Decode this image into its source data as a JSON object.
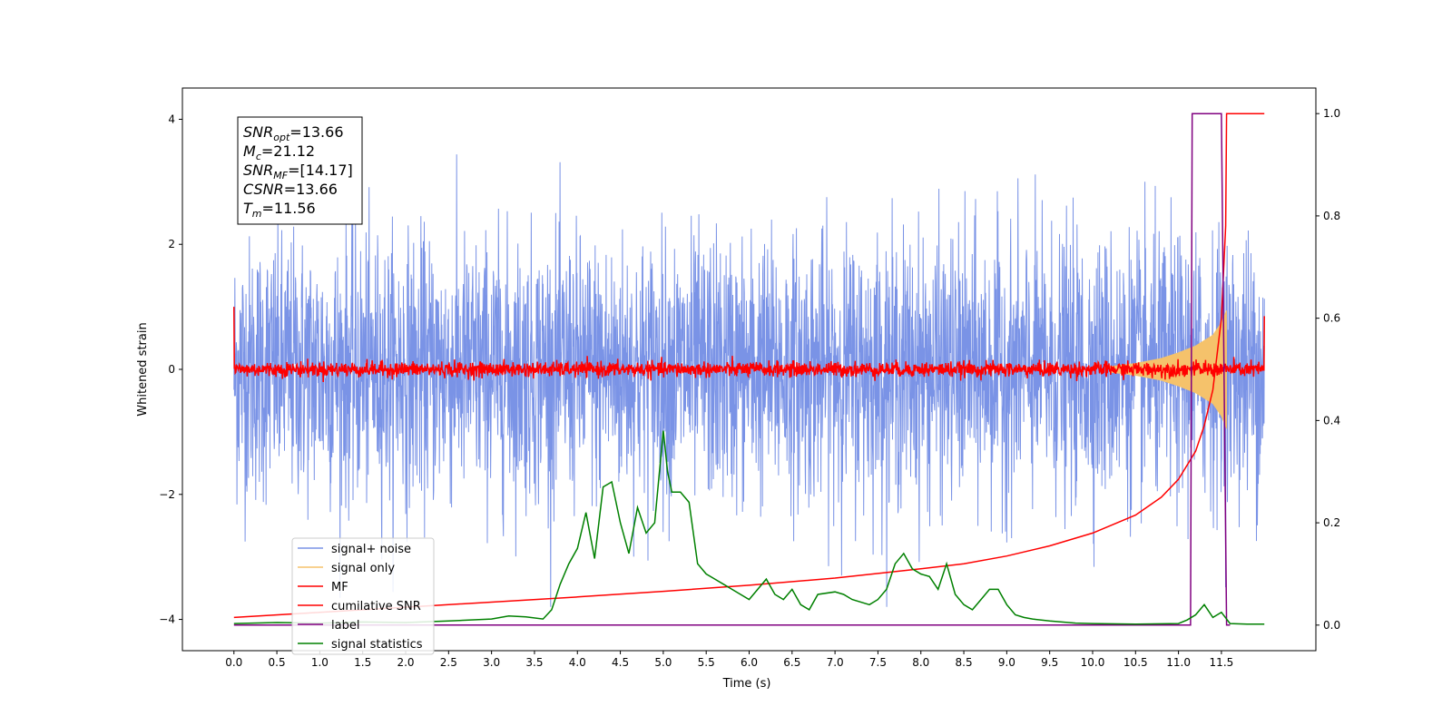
{
  "chart_data": {
    "type": "line",
    "xlabel": "Time (s)",
    "ylabel": "Whitened strain",
    "xlim": [
      -0.6,
      12.6
    ],
    "ylim": [
      -4.5,
      4.5
    ],
    "ylim_right": [
      -0.05,
      1.05
    ],
    "x_ticks": [
      "0.0",
      "0.5",
      "1.0",
      "1.5",
      "2.0",
      "2.5",
      "3.0",
      "3.5",
      "4.0",
      "4.5",
      "5.0",
      "5.5",
      "6.0",
      "6.5",
      "7.0",
      "7.5",
      "8.0",
      "8.5",
      "9.0",
      "9.5",
      "10.0",
      "10.5",
      "11.0",
      "11.5"
    ],
    "y_ticks_left": [
      "4",
      "2",
      "0",
      "−2",
      "−4"
    ],
    "y_ticks_right": [
      "1.0",
      "0.8",
      "0.6",
      "0.4",
      "0.2",
      "0.0"
    ],
    "legend": {
      "placement": "lower-left",
      "entries": [
        {
          "label": "signal+ noise",
          "color": "#7a93e6"
        },
        {
          "label": "signal only",
          "color": "#f5c26b"
        },
        {
          "label": "MF",
          "color": "#ff0000"
        },
        {
          "label": "cumilative SNR",
          "color": "#ff0000"
        },
        {
          "label": "label",
          "color": "#800080"
        },
        {
          "label": "signal statistics",
          "color": "#008000"
        }
      ]
    },
    "annotation": {
      "lines": [
        {
          "sym": "SNR",
          "sub": "opt",
          "val": "=13.66"
        },
        {
          "sym": "M",
          "sub": "c",
          "val": "=21.12"
        },
        {
          "sym": "SNR",
          "sub": "MF",
          "val": "=[14.17]"
        },
        {
          "sym": "CSNR",
          "sub": "",
          "val": "=13.66"
        },
        {
          "sym": "T",
          "sub": "m",
          "val": "=11.56"
        }
      ]
    },
    "series": [
      {
        "name": "signal+ noise",
        "axis": "left",
        "color": "#7a93e6",
        "x_range": [
          0.0,
          12.0
        ],
        "amplitude_typical": 2.3,
        "amplitude_peak": 3.8
      },
      {
        "name": "signal only",
        "axis": "left",
        "color": "#f5c26b",
        "envelope": {
          "x": [
            10.2,
            10.5,
            10.8,
            11.0,
            11.2,
            11.4,
            11.5,
            11.56
          ],
          "amp": [
            0.05,
            0.1,
            0.18,
            0.27,
            0.38,
            0.55,
            0.75,
            0.95
          ]
        }
      },
      {
        "name": "MF",
        "axis": "left",
        "color": "#ff0000",
        "x_range": [
          0.0,
          12.0
        ],
        "amplitude_typical": 0.12,
        "start_value": 1.0,
        "end_value": 0.85
      },
      {
        "name": "cumilative SNR",
        "axis": "right",
        "color": "#ff0000",
        "x": [
          0.0,
          1.0,
          2.0,
          3.0,
          4.0,
          5.0,
          6.0,
          7.0,
          8.0,
          8.5,
          9.0,
          9.5,
          10.0,
          10.5,
          10.8,
          11.0,
          11.2,
          11.3,
          11.4,
          11.5,
          11.55,
          11.56,
          11.6,
          12.0
        ],
        "values": [
          0.015,
          0.025,
          0.035,
          0.045,
          0.055,
          0.066,
          0.078,
          0.092,
          0.11,
          0.12,
          0.135,
          0.155,
          0.18,
          0.215,
          0.25,
          0.285,
          0.34,
          0.39,
          0.46,
          0.6,
          0.78,
          1.0,
          1.0,
          1.0
        ]
      },
      {
        "name": "label",
        "axis": "right",
        "color": "#800080",
        "x": [
          0.0,
          11.14,
          11.16,
          11.5,
          11.56,
          11.6
        ],
        "values": [
          0.0,
          0.0,
          1.0,
          1.0,
          0.0,
          0.0
        ]
      },
      {
        "name": "signal statistics",
        "axis": "right",
        "color": "#008000",
        "x": [
          0.0,
          0.5,
          1.0,
          1.5,
          2.0,
          2.5,
          3.0,
          3.2,
          3.4,
          3.6,
          3.7,
          3.8,
          3.9,
          4.0,
          4.1,
          4.2,
          4.3,
          4.4,
          4.5,
          4.6,
          4.7,
          4.8,
          4.9,
          5.0,
          5.05,
          5.1,
          5.2,
          5.3,
          5.4,
          5.5,
          5.6,
          5.7,
          5.8,
          6.0,
          6.2,
          6.3,
          6.4,
          6.5,
          6.6,
          6.7,
          6.8,
          7.0,
          7.1,
          7.2,
          7.4,
          7.5,
          7.6,
          7.7,
          7.8,
          7.9,
          8.0,
          8.1,
          8.2,
          8.3,
          8.4,
          8.5,
          8.6,
          8.7,
          8.8,
          8.9,
          9.0,
          9.1,
          9.2,
          9.3,
          9.5,
          9.8,
          10.0,
          10.5,
          11.0,
          11.1,
          11.2,
          11.3,
          11.4,
          11.5,
          11.6,
          11.8,
          12.0
        ],
        "values": [
          0.003,
          0.005,
          0.004,
          0.006,
          0.005,
          0.008,
          0.012,
          0.018,
          0.016,
          0.012,
          0.03,
          0.08,
          0.12,
          0.15,
          0.22,
          0.13,
          0.27,
          0.28,
          0.2,
          0.14,
          0.23,
          0.18,
          0.2,
          0.38,
          0.3,
          0.26,
          0.26,
          0.24,
          0.12,
          0.1,
          0.09,
          0.08,
          0.07,
          0.05,
          0.09,
          0.06,
          0.05,
          0.07,
          0.04,
          0.03,
          0.06,
          0.065,
          0.06,
          0.05,
          0.04,
          0.05,
          0.07,
          0.12,
          0.14,
          0.11,
          0.1,
          0.095,
          0.07,
          0.12,
          0.06,
          0.04,
          0.03,
          0.05,
          0.07,
          0.07,
          0.04,
          0.02,
          0.015,
          0.012,
          0.008,
          0.004,
          0.003,
          0.002,
          0.003,
          0.01,
          0.02,
          0.04,
          0.015,
          0.025,
          0.003,
          0.002,
          0.002
        ]
      }
    ]
  }
}
